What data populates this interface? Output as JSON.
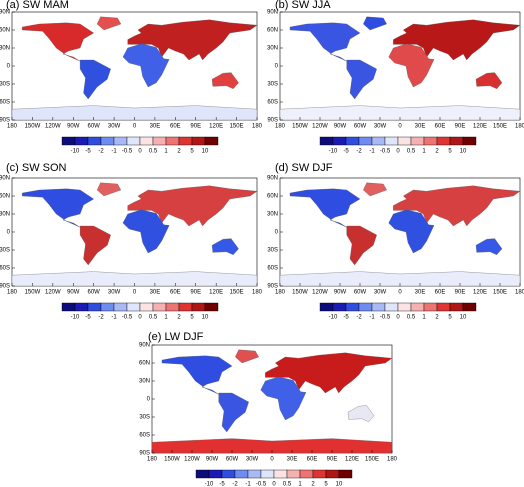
{
  "panels": [
    {
      "title": "(a) SW MAM"
    },
    {
      "title": "(b) SW JJA"
    },
    {
      "title": "(c) SW SON"
    },
    {
      "title": "(d) SW DJF"
    },
    {
      "title": "(e) LW DJF"
    }
  ],
  "map_axes": {
    "lat_labels": [
      "90N",
      "60N",
      "30N",
      "0",
      "30S",
      "60S",
      "90S"
    ],
    "lon_labels": [
      "180",
      "150W",
      "120W",
      "90W",
      "60W",
      "30W",
      "0",
      "30E",
      "60E",
      "90E",
      "120E",
      "150E",
      "180"
    ]
  },
  "colorbar": {
    "labels": [
      "-10",
      "-5",
      "-2",
      "-1",
      "-0.5",
      "0",
      "0.5",
      "1",
      "2",
      "5",
      "10"
    ],
    "colors": [
      "#0c0c7a",
      "#1a1ab4",
      "#2f4de0",
      "#6f8df0",
      "#a9b9f6",
      "#dfe6fb",
      "#fbe3e3",
      "#f5b0b0",
      "#ee7474",
      "#de3434",
      "#b01616",
      "#6e0000"
    ]
  }
}
